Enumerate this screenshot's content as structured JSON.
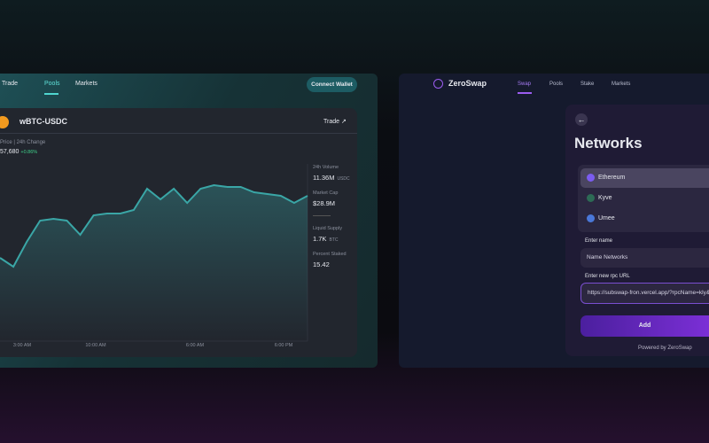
{
  "nav_left": {
    "items": [
      "Trade",
      "Pools",
      "Markets"
    ],
    "button": "Connect Wallet"
  },
  "pair": {
    "name": "wBTC-USDC",
    "trade": "Trade"
  },
  "price": {
    "label": "Price | 24h Change",
    "value": "57,680",
    "change": "+0.86%"
  },
  "stats": [
    {
      "label": "24h Volume",
      "value": "11.36M",
      "unit": "USDC"
    },
    {
      "label": "Market Cap",
      "value": "$28.9M"
    },
    {
      "label": "Liquid Supply",
      "value": "1.7K",
      "unit": "BTC"
    },
    {
      "label": "Percent Staked",
      "value": "15.42"
    }
  ],
  "chart_data": {
    "type": "line",
    "color": "#3aa6a6",
    "ylim": [
      0,
      100
    ],
    "values": [
      47,
      42,
      56,
      68,
      69,
      68,
      60,
      71,
      72,
      72,
      74,
      86,
      80,
      86,
      78,
      86,
      88,
      87,
      87,
      84,
      83,
      82,
      78,
      82
    ],
    "xtick_labels": [
      "3:00 AM",
      "10:00 AM",
      "6:00 AM",
      "6:00 PM"
    ]
  },
  "nav_right": {
    "brand": "ZeroSwap",
    "items": [
      "Swap",
      "Pools",
      "Stake",
      "Markets"
    ]
  },
  "networks": {
    "title": "Networks",
    "list": [
      "Ethereum",
      "Kyve",
      "Umee"
    ],
    "name_label": "Enter name",
    "name_placeholder": "Name Networks",
    "url_label": "Enter new rpc URL",
    "url_value": "https://subswap-fron.vercel.app/?rpcName=kly&",
    "button": "Add",
    "footer": "Powered by ZeroSwap"
  }
}
